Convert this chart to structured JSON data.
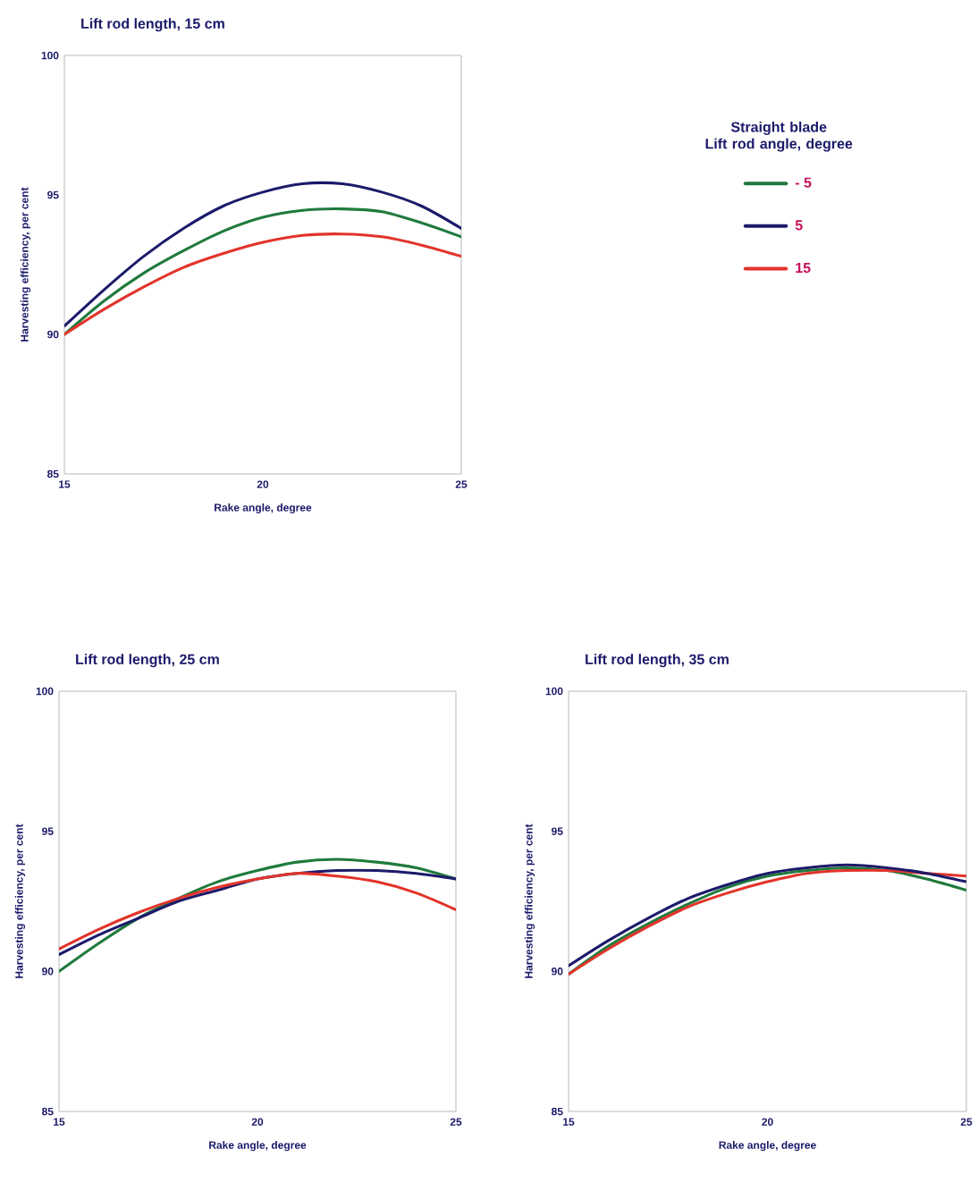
{
  "chart_data": [
    {
      "type": "line",
      "title": "Lift rod length, 15 cm",
      "xlabel": "Rake angle, degree",
      "ylabel": "Harvesting efficiency, per cent",
      "legend_title": "Straight blade\nLift rod angle, degree",
      "legend": "right",
      "x": [
        15,
        16,
        17,
        18,
        19,
        20,
        21,
        22,
        23,
        24,
        25
      ],
      "xlim": [
        15,
        25
      ],
      "ylim": [
        85,
        100
      ],
      "xticks": [
        15,
        20,
        25
      ],
      "yticks": [
        85,
        90,
        95,
        100
      ],
      "grid": false,
      "marker": "none",
      "line_style": "solid",
      "series": [
        {
          "name": "- 5",
          "color": "#1f7a3c",
          "values": [
            90.0,
            91.2,
            92.2,
            93.0,
            93.7,
            94.2,
            94.45,
            94.5,
            94.4,
            94.0,
            93.5
          ]
        },
        {
          "name": "5",
          "color": "#1c1a6a",
          "values": [
            90.3,
            91.6,
            92.8,
            93.8,
            94.6,
            95.1,
            95.4,
            95.4,
            95.1,
            94.6,
            93.8
          ]
        },
        {
          "name": "15",
          "color": "#e2342b",
          "values": [
            90.0,
            90.9,
            91.7,
            92.4,
            92.9,
            93.3,
            93.55,
            93.6,
            93.5,
            93.2,
            92.8
          ]
        }
      ]
    },
    {
      "type": "line",
      "title": "Lift rod length, 25 cm",
      "xlabel": "Rake angle, degree",
      "ylabel": "Harvesting efficiency, per cent",
      "x": [
        15,
        16,
        17,
        18,
        19,
        20,
        21,
        22,
        23,
        24,
        25
      ],
      "xlim": [
        15,
        25
      ],
      "ylim": [
        85,
        100
      ],
      "xticks": [
        15,
        20,
        25
      ],
      "yticks": [
        85,
        90,
        95,
        100
      ],
      "grid": false,
      "marker": "none",
      "line_style": "solid",
      "series": [
        {
          "color": "#1f7a3c",
          "values": [
            90.0,
            91.0,
            91.9,
            92.6,
            93.2,
            93.6,
            93.9,
            94.0,
            93.9,
            93.7,
            93.3
          ]
        },
        {
          "color": "#1c1a6a",
          "values": [
            90.6,
            91.3,
            91.9,
            92.5,
            92.9,
            93.3,
            93.5,
            93.6,
            93.6,
            93.5,
            93.3
          ]
        },
        {
          "color": "#e2342b",
          "values": [
            90.8,
            91.5,
            92.1,
            92.6,
            93.0,
            93.3,
            93.5,
            93.4,
            93.2,
            92.8,
            92.2
          ]
        }
      ]
    },
    {
      "type": "line",
      "title": "Lift rod length, 35 cm",
      "xlabel": "Rake angle, degree",
      "ylabel": "Harvesting efficiency, per cent",
      "x": [
        15,
        16,
        17,
        18,
        19,
        20,
        21,
        22,
        23,
        24,
        25
      ],
      "xlim": [
        15,
        25
      ],
      "ylim": [
        85,
        100
      ],
      "xticks": [
        15,
        20,
        25
      ],
      "yticks": [
        85,
        90,
        95,
        100
      ],
      "grid": false,
      "marker": "none",
      "line_style": "solid",
      "series": [
        {
          "color": "#1f7a3c",
          "values": [
            89.9,
            90.9,
            91.7,
            92.4,
            93.0,
            93.4,
            93.6,
            93.7,
            93.6,
            93.3,
            92.9
          ]
        },
        {
          "color": "#e2342b",
          "values": [
            89.9,
            90.8,
            91.6,
            92.3,
            92.8,
            93.2,
            93.5,
            93.6,
            93.6,
            93.5,
            93.4
          ]
        },
        {
          "color": "#1c1a6a",
          "values": [
            90.2,
            91.1,
            91.9,
            92.6,
            93.1,
            93.5,
            93.7,
            93.8,
            93.7,
            93.5,
            93.2
          ]
        }
      ]
    }
  ]
}
